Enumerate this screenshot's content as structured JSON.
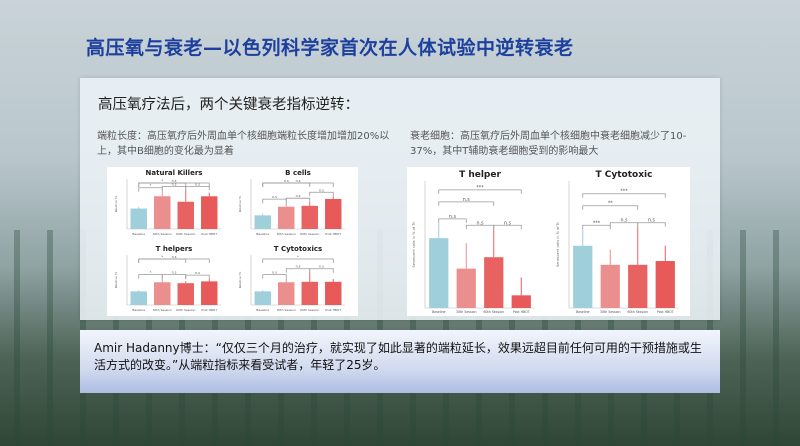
{
  "title": "高压氧与衰老—以色列科学家首次在人体试验中逆转衰老",
  "panel": {
    "heading": "高压氧疗法后，两个关键衰老指标逆转：",
    "left_caption": "端粒长度：高压氧疗后外周血单个核细胞端粒长度增加增加20%以上，其中B细胞的变化最为显着",
    "right_caption": "衰老细胞：高压氧疗后外周血单个核细胞中衰老细胞减少了10-37%，其中T辅助衰老细胞受到的影响最大"
  },
  "quote": "Amir Hadanny博士：“仅仅三个月的治疗，就实现了如此显著的端粒延长，效果远超目前任何可用的干预措施或生活方式的改变。”从端粒指标来看受试者，年轻了25岁。",
  "colors": {
    "baseline": "#9fcfdb",
    "s30": "#eb8e8e",
    "s60": "#e86262",
    "post": "#e85a5a",
    "title": "#1d3f9e"
  },
  "chart_data": [
    {
      "type": "bar",
      "title": "Natural Killers",
      "ylabel": "Relative TL",
      "categories": [
        "Baseline",
        "30th Session",
        "60th Session",
        "Post HBOT"
      ],
      "values": [
        0.45,
        0.72,
        0.6,
        0.72
      ],
      "errors": [
        0.04,
        0.1,
        0.25,
        0.08
      ],
      "ylim": [
        0,
        1.1
      ],
      "significance": [
        [
          0,
          1,
          "*"
        ],
        [
          0,
          2,
          "*"
        ],
        [
          1,
          2,
          "n.s"
        ],
        [
          2,
          3,
          "n.s"
        ],
        [
          0,
          3,
          "n.s"
        ]
      ]
    },
    {
      "type": "bar",
      "title": "B cells",
      "ylabel": "Relative TL",
      "categories": [
        "Baseline",
        "30th Session",
        "60th Session",
        "Post HBOT"
      ],
      "values": [
        0.3,
        0.49,
        0.51,
        0.66
      ],
      "errors": [
        0.04,
        0.08,
        0.08,
        0.06
      ],
      "ylim": [
        0,
        1.1
      ],
      "significance": [
        [
          0,
          1,
          "n.s"
        ],
        [
          0,
          2,
          "n.s"
        ],
        [
          1,
          2,
          "n.s"
        ],
        [
          2,
          3,
          "n.s"
        ],
        [
          0,
          3,
          "n.s"
        ]
      ]
    },
    {
      "type": "bar",
      "title": "T helpers",
      "ylabel": "Relative TL",
      "categories": [
        "Baseline",
        "30th Session",
        "60th Session",
        "Post HBOT"
      ],
      "values": [
        0.3,
        0.5,
        0.48,
        0.52
      ],
      "errors": [
        0.03,
        0.08,
        0.05,
        0.05
      ],
      "ylim": [
        0,
        1.1
      ],
      "significance": [
        [
          0,
          1,
          "*"
        ],
        [
          0,
          2,
          "*"
        ],
        [
          1,
          2,
          "n.s"
        ],
        [
          2,
          3,
          "n.s"
        ],
        [
          0,
          3,
          "n.s"
        ]
      ]
    },
    {
      "type": "bar",
      "title": "T Cytotoxics",
      "ylabel": "Relative TL",
      "categories": [
        "Baseline",
        "30th Session",
        "60th Session",
        "Post HBOT"
      ],
      "values": [
        0.3,
        0.5,
        0.51,
        0.51
      ],
      "errors": [
        0.03,
        0.08,
        0.2,
        0.06
      ],
      "ylim": [
        0,
        1.1
      ],
      "significance": [
        [
          0,
          1,
          "n.s"
        ],
        [
          1,
          2,
          "n.s"
        ],
        [
          2,
          3,
          "n.s"
        ],
        [
          0,
          3,
          "*"
        ]
      ]
    },
    {
      "type": "bar",
      "title": "T helper",
      "ylabel": "Senescent cells in % of Th",
      "categories": [
        "Baseline",
        "30th Session",
        "60th Session",
        "Post HBOT"
      ],
      "values": [
        0.55,
        0.31,
        0.4,
        0.1
      ],
      "errors": [
        0.12,
        0.2,
        0.22,
        0.14
      ],
      "ylim": [
        0,
        1
      ],
      "significance": [
        [
          0,
          1,
          "n.s"
        ],
        [
          0,
          2,
          "n.s"
        ],
        [
          1,
          2,
          "n.s"
        ],
        [
          2,
          3,
          "n.s"
        ],
        [
          0,
          3,
          "***"
        ]
      ]
    },
    {
      "type": "bar",
      "title": "T Cytotoxic",
      "ylabel": "Senescent cells in % of Tc",
      "categories": [
        "Baseline",
        "30th Session",
        "60th Session",
        "Post HBOT"
      ],
      "values": [
        0.49,
        0.34,
        0.34,
        0.37
      ],
      "errors": [
        0.13,
        0.12,
        0.3,
        0.12
      ],
      "ylim": [
        0,
        1
      ],
      "significance": [
        [
          0,
          1,
          "***"
        ],
        [
          1,
          2,
          "n.s"
        ],
        [
          2,
          3,
          "n.s"
        ],
        [
          0,
          2,
          "**"
        ],
        [
          0,
          3,
          "***"
        ]
      ]
    }
  ]
}
